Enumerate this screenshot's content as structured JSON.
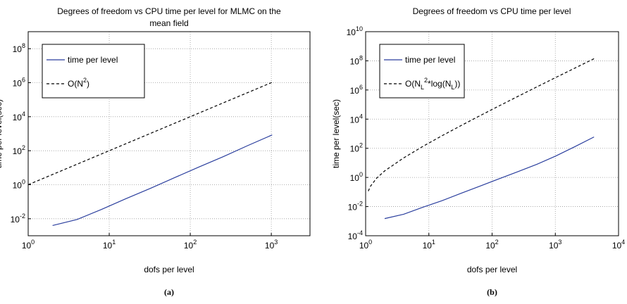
{
  "chart_data": [
    {
      "type": "line",
      "log_x": true,
      "log_y": true,
      "grid": true,
      "title": "Degrees of freedom vs CPU time per level for MLMC on the mean field",
      "xlabel": "dofs per level",
      "ylabel": "time per level(sec)",
      "caption": "(a)",
      "legend": "upper left",
      "xlim": [
        1,
        3000
      ],
      "ylim": [
        0.001,
        1000000000
      ],
      "xticks": [
        {
          "value": 1,
          "label": "10^0"
        },
        {
          "value": 10,
          "label": "10^1"
        },
        {
          "value": 100,
          "label": "10^2"
        },
        {
          "value": 1000,
          "label": "10^3"
        }
      ],
      "yticks": [
        {
          "value": 0.01,
          "label": "10^-2"
        },
        {
          "value": 1,
          "label": "10^0"
        },
        {
          "value": 100,
          "label": "10^2"
        },
        {
          "value": 10000,
          "label": "10^4"
        },
        {
          "value": 1000000,
          "label": "10^6"
        },
        {
          "value": 100000000,
          "label": "10^8"
        }
      ],
      "series": [
        {
          "name": "time per level",
          "color": "#2b3f9e",
          "dash": false,
          "x": [
            2,
            4,
            8,
            16,
            32,
            64,
            128,
            256,
            512,
            1024
          ],
          "values": [
            0.004,
            0.009,
            0.035,
            0.15,
            0.6,
            2.6,
            11,
            45,
            200,
            850
          ]
        },
        {
          "name": "O(N^2)",
          "color": "#000000",
          "dash": true,
          "x": [
            1,
            2,
            4,
            8,
            16,
            32,
            64,
            128,
            256,
            512,
            1024
          ],
          "values": [
            1,
            4,
            16,
            64,
            256,
            1024,
            4096,
            16384,
            65536,
            262144,
            1048576
          ]
        }
      ]
    },
    {
      "type": "line",
      "log_x": true,
      "log_y": true,
      "grid": true,
      "title": "Degrees of freedom vs CPU time per level",
      "xlabel": "dofs per level",
      "ylabel": "time per level(sec)",
      "caption": "(b)",
      "legend": "upper left",
      "xlim": [
        1,
        10000
      ],
      "ylim": [
        0.0001,
        10000000000
      ],
      "xticks": [
        {
          "value": 1,
          "label": "10^0"
        },
        {
          "value": 10,
          "label": "10^1"
        },
        {
          "value": 100,
          "label": "10^2"
        },
        {
          "value": 1000,
          "label": "10^3"
        },
        {
          "value": 10000,
          "label": "10^4"
        }
      ],
      "yticks": [
        {
          "value": 0.0001,
          "label": "10^-4"
        },
        {
          "value": 0.01,
          "label": "10^-2"
        },
        {
          "value": 1,
          "label": "10^0"
        },
        {
          "value": 100,
          "label": "10^2"
        },
        {
          "value": 10000,
          "label": "10^4"
        },
        {
          "value": 1000000,
          "label": "10^6"
        },
        {
          "value": 100000000,
          "label": "10^8"
        },
        {
          "value": 10000000000,
          "label": "10^10"
        }
      ],
      "series": [
        {
          "name": "time per level",
          "color": "#2b3f9e",
          "dash": false,
          "x": [
            2,
            4,
            8,
            16,
            32,
            64,
            128,
            256,
            512,
            1024,
            2048,
            4096
          ],
          "values": [
            0.0015,
            0.003,
            0.009,
            0.025,
            0.08,
            0.25,
            0.8,
            2.5,
            8,
            30,
            130,
            600
          ]
        },
        {
          "name": "O(N_L^2*log(N_L))",
          "color": "#000000",
          "dash": true,
          "x": [
            1.1,
            1.2,
            1.5,
            2,
            4,
            8,
            16,
            32,
            64,
            128,
            256,
            512,
            1024,
            2048,
            4096
          ],
          "values": [
            0.115,
            0.26,
            0.91,
            2.8,
            22,
            133,
            710,
            3550,
            17000,
            79500,
            363000,
            1640000,
            7300000,
            32000000,
            140000000
          ]
        }
      ]
    }
  ]
}
